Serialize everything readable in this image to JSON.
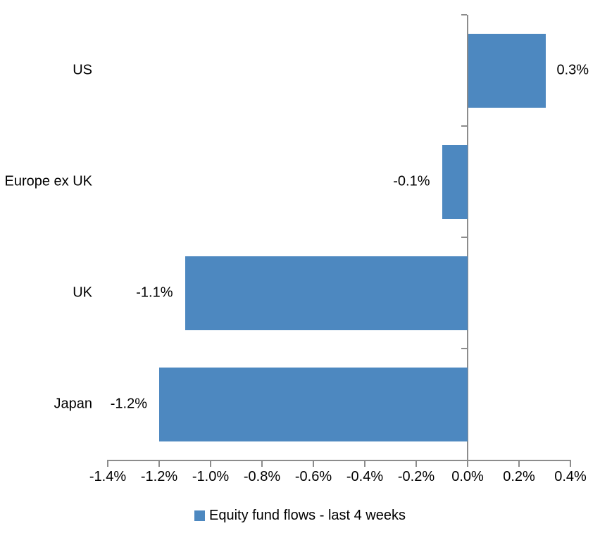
{
  "chart_data": {
    "type": "bar",
    "orientation": "horizontal",
    "title": "",
    "categories": [
      "US",
      "Europe ex UK",
      "UK",
      "Japan"
    ],
    "series": [
      {
        "name": "Equity fund flows - last 4 weeks",
        "values": [
          0.3,
          -0.1,
          -1.1,
          -1.2
        ]
      }
    ],
    "data_labels": [
      "0.3%",
      "-0.1%",
      "-1.1%",
      "-1.2%"
    ],
    "x_axis": {
      "min": -1.4,
      "max": 0.4,
      "step": 0.2,
      "tick_labels": [
        "-1.4%",
        "-1.2%",
        "-1.0%",
        "-0.8%",
        "-0.6%",
        "-0.4%",
        "-0.2%",
        "0.0%",
        "0.2%",
        "0.4%"
      ],
      "format": "percent"
    },
    "legend": {
      "label": "Equity fund flows - last 4 weeks",
      "position": "bottom"
    },
    "grid": false,
    "colors": {
      "bar": "#4D88C0",
      "axis": "#8C8C8C",
      "text": "#000000",
      "background": "#FFFFFF"
    }
  }
}
